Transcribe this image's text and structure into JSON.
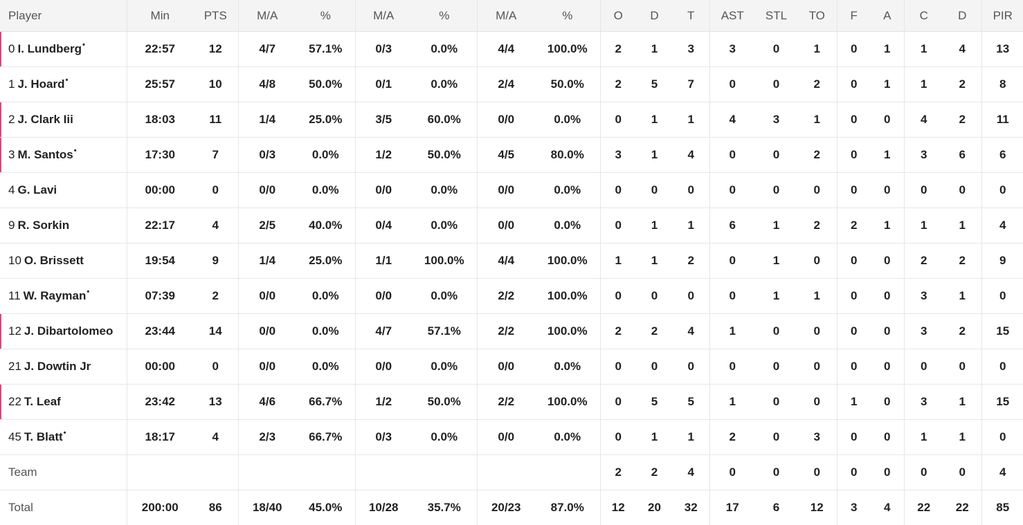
{
  "headers": [
    "Player",
    "Min",
    "PTS",
    "M/A",
    "%",
    "M/A",
    "%",
    "M/A",
    "%",
    "O",
    "D",
    "T",
    "AST",
    "STL",
    "TO",
    "F",
    "A",
    "C",
    "D",
    "PIR"
  ],
  "players": [
    {
      "num": "0",
      "name": "I. Lundberg",
      "starter": true,
      "flag": true,
      "stats": [
        "22:57",
        "12",
        "4/7",
        "57.1%",
        "0/3",
        "0.0%",
        "4/4",
        "100.0%",
        "2",
        "1",
        "3",
        "3",
        "0",
        "1",
        "0",
        "1",
        "1",
        "4",
        "13"
      ]
    },
    {
      "num": "1",
      "name": "J. Hoard",
      "starter": true,
      "flag": false,
      "stats": [
        "25:57",
        "10",
        "4/8",
        "50.0%",
        "0/1",
        "0.0%",
        "2/4",
        "50.0%",
        "2",
        "5",
        "7",
        "0",
        "0",
        "2",
        "0",
        "1",
        "1",
        "2",
        "8"
      ]
    },
    {
      "num": "2",
      "name": "J. Clark Iii",
      "starter": false,
      "flag": true,
      "stats": [
        "18:03",
        "11",
        "1/4",
        "25.0%",
        "3/5",
        "60.0%",
        "0/0",
        "0.0%",
        "0",
        "1",
        "1",
        "4",
        "3",
        "1",
        "0",
        "0",
        "4",
        "2",
        "11"
      ]
    },
    {
      "num": "3",
      "name": "M. Santos",
      "starter": true,
      "flag": true,
      "stats": [
        "17:30",
        "7",
        "0/3",
        "0.0%",
        "1/2",
        "50.0%",
        "4/5",
        "80.0%",
        "3",
        "1",
        "4",
        "0",
        "0",
        "2",
        "0",
        "1",
        "3",
        "6",
        "6"
      ]
    },
    {
      "num": "4",
      "name": "G. Lavi",
      "starter": false,
      "flag": false,
      "stats": [
        "00:00",
        "0",
        "0/0",
        "0.0%",
        "0/0",
        "0.0%",
        "0/0",
        "0.0%",
        "0",
        "0",
        "0",
        "0",
        "0",
        "0",
        "0",
        "0",
        "0",
        "0",
        "0"
      ]
    },
    {
      "num": "9",
      "name": "R. Sorkin",
      "starter": false,
      "flag": false,
      "stats": [
        "22:17",
        "4",
        "2/5",
        "40.0%",
        "0/4",
        "0.0%",
        "0/0",
        "0.0%",
        "0",
        "1",
        "1",
        "6",
        "1",
        "2",
        "2",
        "1",
        "1",
        "1",
        "4"
      ]
    },
    {
      "num": "10",
      "name": "O. Brissett",
      "starter": false,
      "flag": false,
      "stats": [
        "19:54",
        "9",
        "1/4",
        "25.0%",
        "1/1",
        "100.0%",
        "4/4",
        "100.0%",
        "1",
        "1",
        "2",
        "0",
        "1",
        "0",
        "0",
        "0",
        "2",
        "2",
        "9"
      ]
    },
    {
      "num": "11",
      "name": "W. Rayman",
      "starter": true,
      "flag": false,
      "stats": [
        "07:39",
        "2",
        "0/0",
        "0.0%",
        "0/0",
        "0.0%",
        "2/2",
        "100.0%",
        "0",
        "0",
        "0",
        "0",
        "1",
        "1",
        "0",
        "0",
        "3",
        "1",
        "0"
      ]
    },
    {
      "num": "12",
      "name": "J. Dibartolomeo",
      "starter": false,
      "flag": true,
      "stats": [
        "23:44",
        "14",
        "0/0",
        "0.0%",
        "4/7",
        "57.1%",
        "2/2",
        "100.0%",
        "2",
        "2",
        "4",
        "1",
        "0",
        "0",
        "0",
        "0",
        "3",
        "2",
        "15"
      ]
    },
    {
      "num": "21",
      "name": "J. Dowtin Jr",
      "starter": false,
      "flag": false,
      "stats": [
        "00:00",
        "0",
        "0/0",
        "0.0%",
        "0/0",
        "0.0%",
        "0/0",
        "0.0%",
        "0",
        "0",
        "0",
        "0",
        "0",
        "0",
        "0",
        "0",
        "0",
        "0",
        "0"
      ]
    },
    {
      "num": "22",
      "name": "T. Leaf",
      "starter": false,
      "flag": true,
      "stats": [
        "23:42",
        "13",
        "4/6",
        "66.7%",
        "1/2",
        "50.0%",
        "2/2",
        "100.0%",
        "0",
        "5",
        "5",
        "1",
        "0",
        "0",
        "1",
        "0",
        "3",
        "1",
        "15"
      ]
    },
    {
      "num": "45",
      "name": "T. Blatt",
      "starter": true,
      "flag": false,
      "stats": [
        "18:17",
        "4",
        "2/3",
        "66.7%",
        "0/3",
        "0.0%",
        "0/0",
        "0.0%",
        "0",
        "1",
        "1",
        "2",
        "0",
        "3",
        "0",
        "0",
        "1",
        "1",
        "0"
      ]
    }
  ],
  "team": {
    "label": "Team",
    "stats": [
      "",
      "",
      "",
      "",
      "",
      "",
      "",
      "",
      "2",
      "2",
      "4",
      "0",
      "0",
      "0",
      "0",
      "0",
      "0",
      "0",
      "4"
    ]
  },
  "total": {
    "label": "Total",
    "stats": [
      "200:00",
      "86",
      "18/40",
      "45.0%",
      "10/28",
      "35.7%",
      "20/23",
      "87.0%",
      "12",
      "20",
      "32",
      "17",
      "6",
      "12",
      "3",
      "4",
      "22",
      "22",
      "85"
    ]
  },
  "starter_mark": "•",
  "colors": {
    "header_bg": "#f4f4f4",
    "flag": "#e0457b",
    "border": "#e6e6e6"
  }
}
